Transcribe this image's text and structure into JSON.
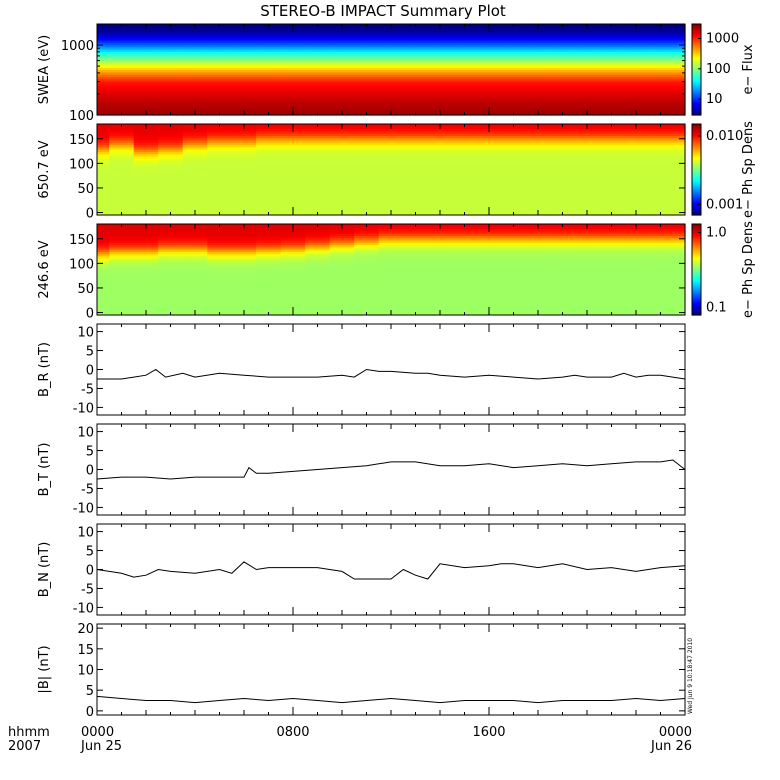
{
  "title": "STEREO-B IMPACT Summary Plot",
  "x_axis": {
    "row1_label": "hhmm",
    "row2_label": "2007",
    "ticks": [
      {
        "hours": 0,
        "label": "0000",
        "sub": "Jun 25"
      },
      {
        "hours": 8,
        "label": "0800",
        "sub": ""
      },
      {
        "hours": 16,
        "label": "1600",
        "sub": ""
      },
      {
        "hours": 24,
        "label": "0000",
        "sub": "Jun 26"
      }
    ],
    "range_hours": [
      0,
      24
    ]
  },
  "side_stamp": "Wed Jun 9 10:18:47 2010",
  "chart_data": [
    {
      "type": "heatmap",
      "id": "swea",
      "ylabel": "SWEA (eV)",
      "yscale": "log",
      "ylim": [
        100,
        2000
      ],
      "yticks": [
        {
          "v": 100,
          "label": "100"
        },
        {
          "v": 1000,
          "label": "1000"
        }
      ],
      "colorbar": {
        "label": "e− Flux",
        "scale": "log",
        "range": [
          3,
          3000
        ],
        "ticks": [
          {
            "v": 10,
            "label": "10"
          },
          {
            "v": 100,
            "label": "100"
          },
          {
            "v": 1000,
            "label": "1000"
          }
        ]
      },
      "profile_energy_eV": [
        100,
        150,
        200,
        300,
        400,
        600,
        800,
        1000,
        1300,
        1600,
        2000
      ],
      "profile_flux": [
        2500,
        2000,
        1600,
        1100,
        500,
        120,
        40,
        15,
        6,
        3.5,
        3
      ]
    },
    {
      "type": "heatmap",
      "id": "pad650",
      "ylabel": "650.7 eV",
      "ylim": [
        -5,
        180
      ],
      "yticks": [
        0,
        50,
        100,
        150
      ],
      "colorbar": {
        "label": "e− Ph Sp Dens",
        "scale": "log",
        "range": [
          0.0007,
          0.015
        ],
        "ticks": [
          {
            "v": 0.001,
            "label": "0.001"
          },
          {
            "v": 0.01,
            "label": "0.010"
          }
        ]
      },
      "pitch_angle_deg": [
        0,
        30,
        60,
        90,
        120,
        150,
        180
      ],
      "level_low_angles": 0.004,
      "level_high_angles": 0.011,
      "transition_deg": [
        130,
        140,
        125,
        130,
        140,
        145,
        145,
        150,
        150,
        150,
        150,
        150,
        150,
        150,
        150,
        150,
        150,
        150,
        150,
        150,
        150,
        150,
        150,
        150,
        150
      ]
    },
    {
      "type": "heatmap",
      "id": "pad246",
      "ylabel": "246.6 eV",
      "ylim": [
        -5,
        180
      ],
      "yticks": [
        0,
        50,
        100,
        150
      ],
      "colorbar": {
        "label": "e− Ph Sp Dens",
        "scale": "log",
        "range": [
          0.08,
          1.3
        ],
        "ticks": [
          {
            "v": 0.1,
            "label": "0.1"
          },
          {
            "v": 1.0,
            "label": "1.0"
          }
        ]
      },
      "pitch_angle_deg": [
        0,
        30,
        60,
        90,
        120,
        150,
        180
      ],
      "level_low_angles": 0.35,
      "level_high_angles": 1.0,
      "transition_deg": [
        120,
        125,
        125,
        130,
        130,
        125,
        125,
        128,
        130,
        135,
        140,
        145,
        150,
        150,
        150,
        150,
        150,
        150,
        150,
        150,
        150,
        150,
        150,
        150,
        150
      ]
    },
    {
      "type": "line",
      "id": "br",
      "ylabel": "B_R (nT)",
      "ylim": [
        -12,
        12
      ],
      "yticks": [
        -10,
        -5,
        0,
        5,
        10
      ],
      "x": [
        0,
        1,
        1.5,
        2,
        2.4,
        2.8,
        3.5,
        4,
        5,
        6,
        7,
        8,
        9,
        10,
        10.5,
        11,
        11.5,
        12,
        13,
        13.5,
        14,
        15,
        16,
        17,
        18,
        19,
        19.5,
        20,
        21,
        21.5,
        22,
        22.5,
        23,
        24
      ],
      "y": [
        -2.5,
        -2.5,
        -2.0,
        -1.5,
        0.0,
        -2.0,
        -1.0,
        -2.0,
        -1.0,
        -1.5,
        -2.0,
        -2.0,
        -2.0,
        -1.5,
        -2.0,
        0.0,
        -0.5,
        -0.5,
        -1.0,
        -1.0,
        -1.5,
        -2.0,
        -1.5,
        -2.0,
        -2.5,
        -2.0,
        -1.5,
        -2.0,
        -2.0,
        -1.0,
        -2.0,
        -1.5,
        -1.5,
        -2.5
      ]
    },
    {
      "type": "line",
      "id": "bt",
      "ylabel": "B_T (nT)",
      "ylim": [
        -12,
        12
      ],
      "yticks": [
        -10,
        -5,
        0,
        5,
        10
      ],
      "x": [
        0,
        1,
        2,
        3,
        4,
        5,
        6,
        6.2,
        6.5,
        7,
        8,
        9,
        10,
        11,
        12,
        13,
        14,
        15,
        16,
        17,
        18,
        19,
        20,
        21,
        22,
        23,
        23.5,
        24
      ],
      "y": [
        -2.5,
        -2.0,
        -2.0,
        -2.5,
        -2.0,
        -2.0,
        -2.0,
        0.5,
        -1.0,
        -1.0,
        -0.5,
        0.0,
        0.5,
        1.0,
        2.0,
        2.0,
        1.0,
        1.0,
        1.5,
        0.5,
        1.0,
        1.5,
        1.0,
        1.5,
        2.0,
        2.0,
        2.5,
        0.0
      ]
    },
    {
      "type": "line",
      "id": "bn",
      "ylabel": "B_N (nT)",
      "ylim": [
        -12,
        12
      ],
      "yticks": [
        -10,
        -5,
        0,
        5,
        10
      ],
      "x": [
        0,
        1,
        1.5,
        2,
        2.5,
        3,
        4,
        5,
        5.5,
        6,
        6.5,
        7,
        8,
        9,
        10,
        10.5,
        11,
        12,
        12.5,
        13,
        13.5,
        14,
        15,
        16,
        16.5,
        17,
        18,
        19,
        20,
        21,
        22,
        23,
        24
      ],
      "y": [
        0.0,
        -1.0,
        -2.0,
        -1.5,
        0.0,
        -0.5,
        -1.0,
        0.0,
        -1.0,
        2.0,
        0.0,
        0.5,
        0.5,
        0.5,
        -0.5,
        -2.5,
        -2.5,
        -2.5,
        0.0,
        -1.5,
        -2.5,
        1.5,
        0.5,
        1.0,
        1.5,
        1.5,
        0.5,
        1.5,
        0.0,
        0.5,
        -0.5,
        0.5,
        1.0
      ]
    },
    {
      "type": "line",
      "id": "bmag",
      "ylabel": "|B| (nT)",
      "ylim": [
        -1,
        21
      ],
      "yticks": [
        0,
        5,
        10,
        15,
        20
      ],
      "x": [
        0,
        1,
        2,
        3,
        4,
        5,
        6,
        7,
        8,
        9,
        10,
        11,
        12,
        13,
        14,
        15,
        16,
        17,
        18,
        19,
        20,
        21,
        22,
        23,
        24
      ],
      "y": [
        3.5,
        3.0,
        2.5,
        2.5,
        2.0,
        2.5,
        3.0,
        2.5,
        3.0,
        2.5,
        2.0,
        2.5,
        3.0,
        2.5,
        2.0,
        2.5,
        2.5,
        2.5,
        2.0,
        2.5,
        2.5,
        2.5,
        3.0,
        2.5,
        3.0
      ]
    }
  ]
}
